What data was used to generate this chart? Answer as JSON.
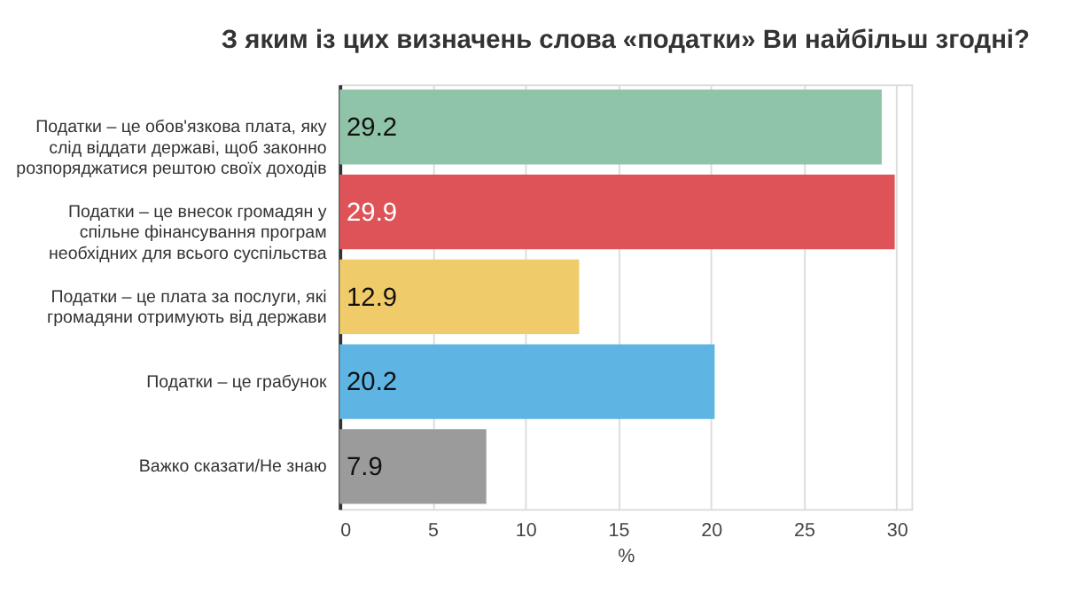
{
  "chart_data": {
    "type": "bar",
    "orientation": "horizontal",
    "title": "З яким із цих визначень слова «податки» Ви найбільш згодні?",
    "categories": [
      "Податки – це обов'язкова плата, яку слід віддати державі, щоб законно розпоряджатися рештою своїх доходів",
      "Податки – це внесок громадян у спільне фінансування програм необхідних для всього суспільства",
      "Податки – це плата за послуги, які громадяни отримують від держави",
      "Податки – це грабунок",
      "Важко сказати/Не знаю"
    ],
    "values": [
      29.2,
      29.9,
      12.9,
      20.2,
      7.9
    ],
    "colors": [
      "#8fc4a8",
      "#de5358",
      "#f0cb6a",
      "#5eb5e3",
      "#9b9b9b"
    ],
    "xlabel": "%",
    "xlim": [
      0,
      30.8
    ],
    "xticks": [
      0,
      5,
      10,
      15,
      20,
      25,
      30
    ],
    "grid": "x",
    "data_labels": true
  }
}
